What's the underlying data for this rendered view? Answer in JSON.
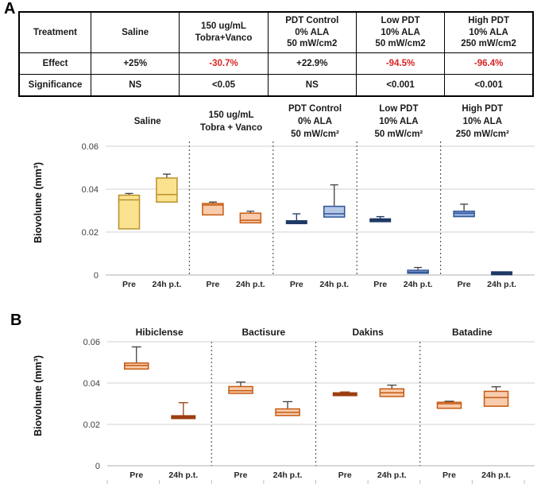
{
  "panels": {
    "a_label": "A",
    "b_label": "B"
  },
  "table": {
    "header_row": [
      "Treatment",
      "Saline",
      "150 ug/mL\nTobra+Vanco",
      "PDT Control\n0% ALA\n50 mW/cm2",
      "Low PDT\n10% ALA\n50 mW/cm2",
      "High PDT\n10% ALA\n250 mW/cm2"
    ],
    "rows": [
      {
        "label": "Effect",
        "values": [
          {
            "text": "+25%",
            "negative": false
          },
          {
            "text": "-30.7%",
            "negative": true
          },
          {
            "text": "+22.9%",
            "negative": false
          },
          {
            "text": "-94.5%",
            "negative": true
          },
          {
            "text": "-96.4%",
            "negative": true
          }
        ]
      },
      {
        "label": "Significance",
        "values": [
          {
            "text": "NS",
            "negative": false
          },
          {
            "text": "<0.05",
            "negative": false
          },
          {
            "text": "NS",
            "negative": false
          },
          {
            "text": "<0.001",
            "negative": false
          },
          {
            "text": "<0.001",
            "negative": false
          }
        ]
      }
    ]
  },
  "colors": {
    "gold": {
      "fill": "#FBE28F",
      "stroke": "#B9912C"
    },
    "peach": {
      "fill": "#F8CBAD",
      "stroke": "#C55A11"
    },
    "peach_dark": {
      "fill": "#9C3D10",
      "stroke": "#9C3D10"
    },
    "navy": {
      "fill": "#1F3864",
      "stroke": "#1F3864"
    },
    "blue": {
      "fill": "#B4C7E7",
      "stroke": "#2F5597"
    },
    "blue_mid": {
      "fill": "#8FAADC",
      "stroke": "#2F5597"
    },
    "grid": "#D9D9D9",
    "axis": "#BFBFBF",
    "separator": "#595959",
    "whisker": "#404040",
    "negative_text": "#d92423",
    "text_dark": "#1a1a1a"
  },
  "chart_data": [
    {
      "panel": "A",
      "type": "box",
      "ylabel": "Biovolume (mm³)",
      "ylim": [
        0,
        0.06
      ],
      "yticks": [
        {
          "value": 0,
          "label": "0"
        },
        {
          "value": 0.02,
          "label": "0.02"
        },
        {
          "value": 0.04,
          "label": "0.04"
        },
        {
          "value": 0.06,
          "label": "0.06"
        }
      ],
      "grid": true,
      "x_tick_labels": [
        "Pre",
        "24h p.t."
      ],
      "groups": [
        {
          "label_lines": [
            "Saline"
          ],
          "boxes": [
            {
              "x": "Pre",
              "q1": 0.0215,
              "median": 0.035,
              "q3": 0.0372,
              "whisker_high": 0.038,
              "style": "gold"
            },
            {
              "x": "24h p.t.",
              "q1": 0.034,
              "median": 0.0375,
              "q3": 0.0452,
              "whisker_high": 0.047,
              "style": "gold"
            }
          ]
        },
        {
          "label_lines": [
            "150 ug/mL",
            "Tobra + Vanco"
          ],
          "boxes": [
            {
              "x": "Pre",
              "q1": 0.028,
              "median": 0.0326,
              "q3": 0.0333,
              "whisker_high": 0.034,
              "style": "peach"
            },
            {
              "x": "24h p.t.",
              "q1": 0.0243,
              "median": 0.0255,
              "q3": 0.0288,
              "whisker_high": 0.0297,
              "style": "peach"
            }
          ]
        },
        {
          "label_lines": [
            "PDT Control",
            "0% ALA",
            "50 mW/cm²"
          ],
          "boxes": [
            {
              "x": "Pre",
              "q1": 0.0242,
              "median": 0.0246,
              "q3": 0.025,
              "whisker_high": 0.0285,
              "style": "navy"
            },
            {
              "x": "24h p.t.",
              "q1": 0.027,
              "median": 0.0285,
              "q3": 0.032,
              "whisker_high": 0.042,
              "style": "blue"
            }
          ]
        },
        {
          "label_lines": [
            "Low PDT",
            "10% ALA",
            "50 mW/cm²"
          ],
          "boxes": [
            {
              "x": "Pre",
              "q1": 0.025,
              "median": 0.0255,
              "q3": 0.026,
              "whisker_high": 0.0272,
              "style": "navy"
            },
            {
              "x": "24h p.t.",
              "q1": 0.0008,
              "median": 0.0014,
              "q3": 0.0022,
              "whisker_high": 0.0035,
              "style": "blue"
            }
          ]
        },
        {
          "label_lines": [
            "High PDT",
            "10% ALA",
            "250 mW/cm²"
          ],
          "boxes": [
            {
              "x": "Pre",
              "q1": 0.0272,
              "median": 0.0288,
              "q3": 0.0297,
              "whisker_high": 0.033,
              "style": "blue_mid"
            },
            {
              "x": "24h p.t.",
              "q1": 0.0005,
              "median": 0.0008,
              "q3": 0.0012,
              "whisker_high": null,
              "style": "navy"
            }
          ]
        }
      ]
    },
    {
      "panel": "B",
      "type": "box",
      "ylabel": "Biovolume (mm³)",
      "ylim": [
        0,
        0.06
      ],
      "yticks": [
        {
          "value": 0,
          "label": "0"
        },
        {
          "value": 0.02,
          "label": "0.02"
        },
        {
          "value": 0.04,
          "label": "0.04"
        },
        {
          "value": 0.06,
          "label": "0.06"
        }
      ],
      "grid": true,
      "x_tick_labels": [
        "Pre",
        "24h p.t."
      ],
      "groups": [
        {
          "label_lines": [
            "Hibiclense"
          ],
          "boxes": [
            {
              "x": "Pre",
              "q1": 0.0468,
              "median": 0.0485,
              "q3": 0.0497,
              "whisker_high": 0.0575,
              "style": "peach"
            },
            {
              "x": "24h p.t.",
              "q1": 0.023,
              "median": 0.0235,
              "q3": 0.024,
              "whisker_high": 0.0305,
              "style": "peach_dark"
            }
          ]
        },
        {
          "label_lines": [
            "Bactisure"
          ],
          "boxes": [
            {
              "x": "Pre",
              "q1": 0.035,
              "median": 0.0363,
              "q3": 0.0383,
              "whisker_high": 0.0405,
              "style": "peach"
            },
            {
              "x": "24h p.t.",
              "q1": 0.0243,
              "median": 0.0258,
              "q3": 0.0275,
              "whisker_high": 0.031,
              "style": "peach"
            }
          ]
        },
        {
          "label_lines": [
            "Dakins"
          ],
          "boxes": [
            {
              "x": "Pre",
              "q1": 0.0341,
              "median": 0.0346,
              "q3": 0.0351,
              "whisker_high": 0.0357,
              "style": "peach_dark"
            },
            {
              "x": "24h p.t.",
              "q1": 0.0335,
              "median": 0.0353,
              "q3": 0.0372,
              "whisker_high": 0.039,
              "style": "peach"
            }
          ]
        },
        {
          "label_lines": [
            "Batadine"
          ],
          "boxes": [
            {
              "x": "Pre",
              "q1": 0.0278,
              "median": 0.03,
              "q3": 0.0307,
              "whisker_high": 0.0312,
              "style": "peach"
            },
            {
              "x": "24h p.t.",
              "q1": 0.0288,
              "median": 0.033,
              "q3": 0.036,
              "whisker_high": 0.0382,
              "style": "peach"
            }
          ]
        }
      ]
    }
  ]
}
